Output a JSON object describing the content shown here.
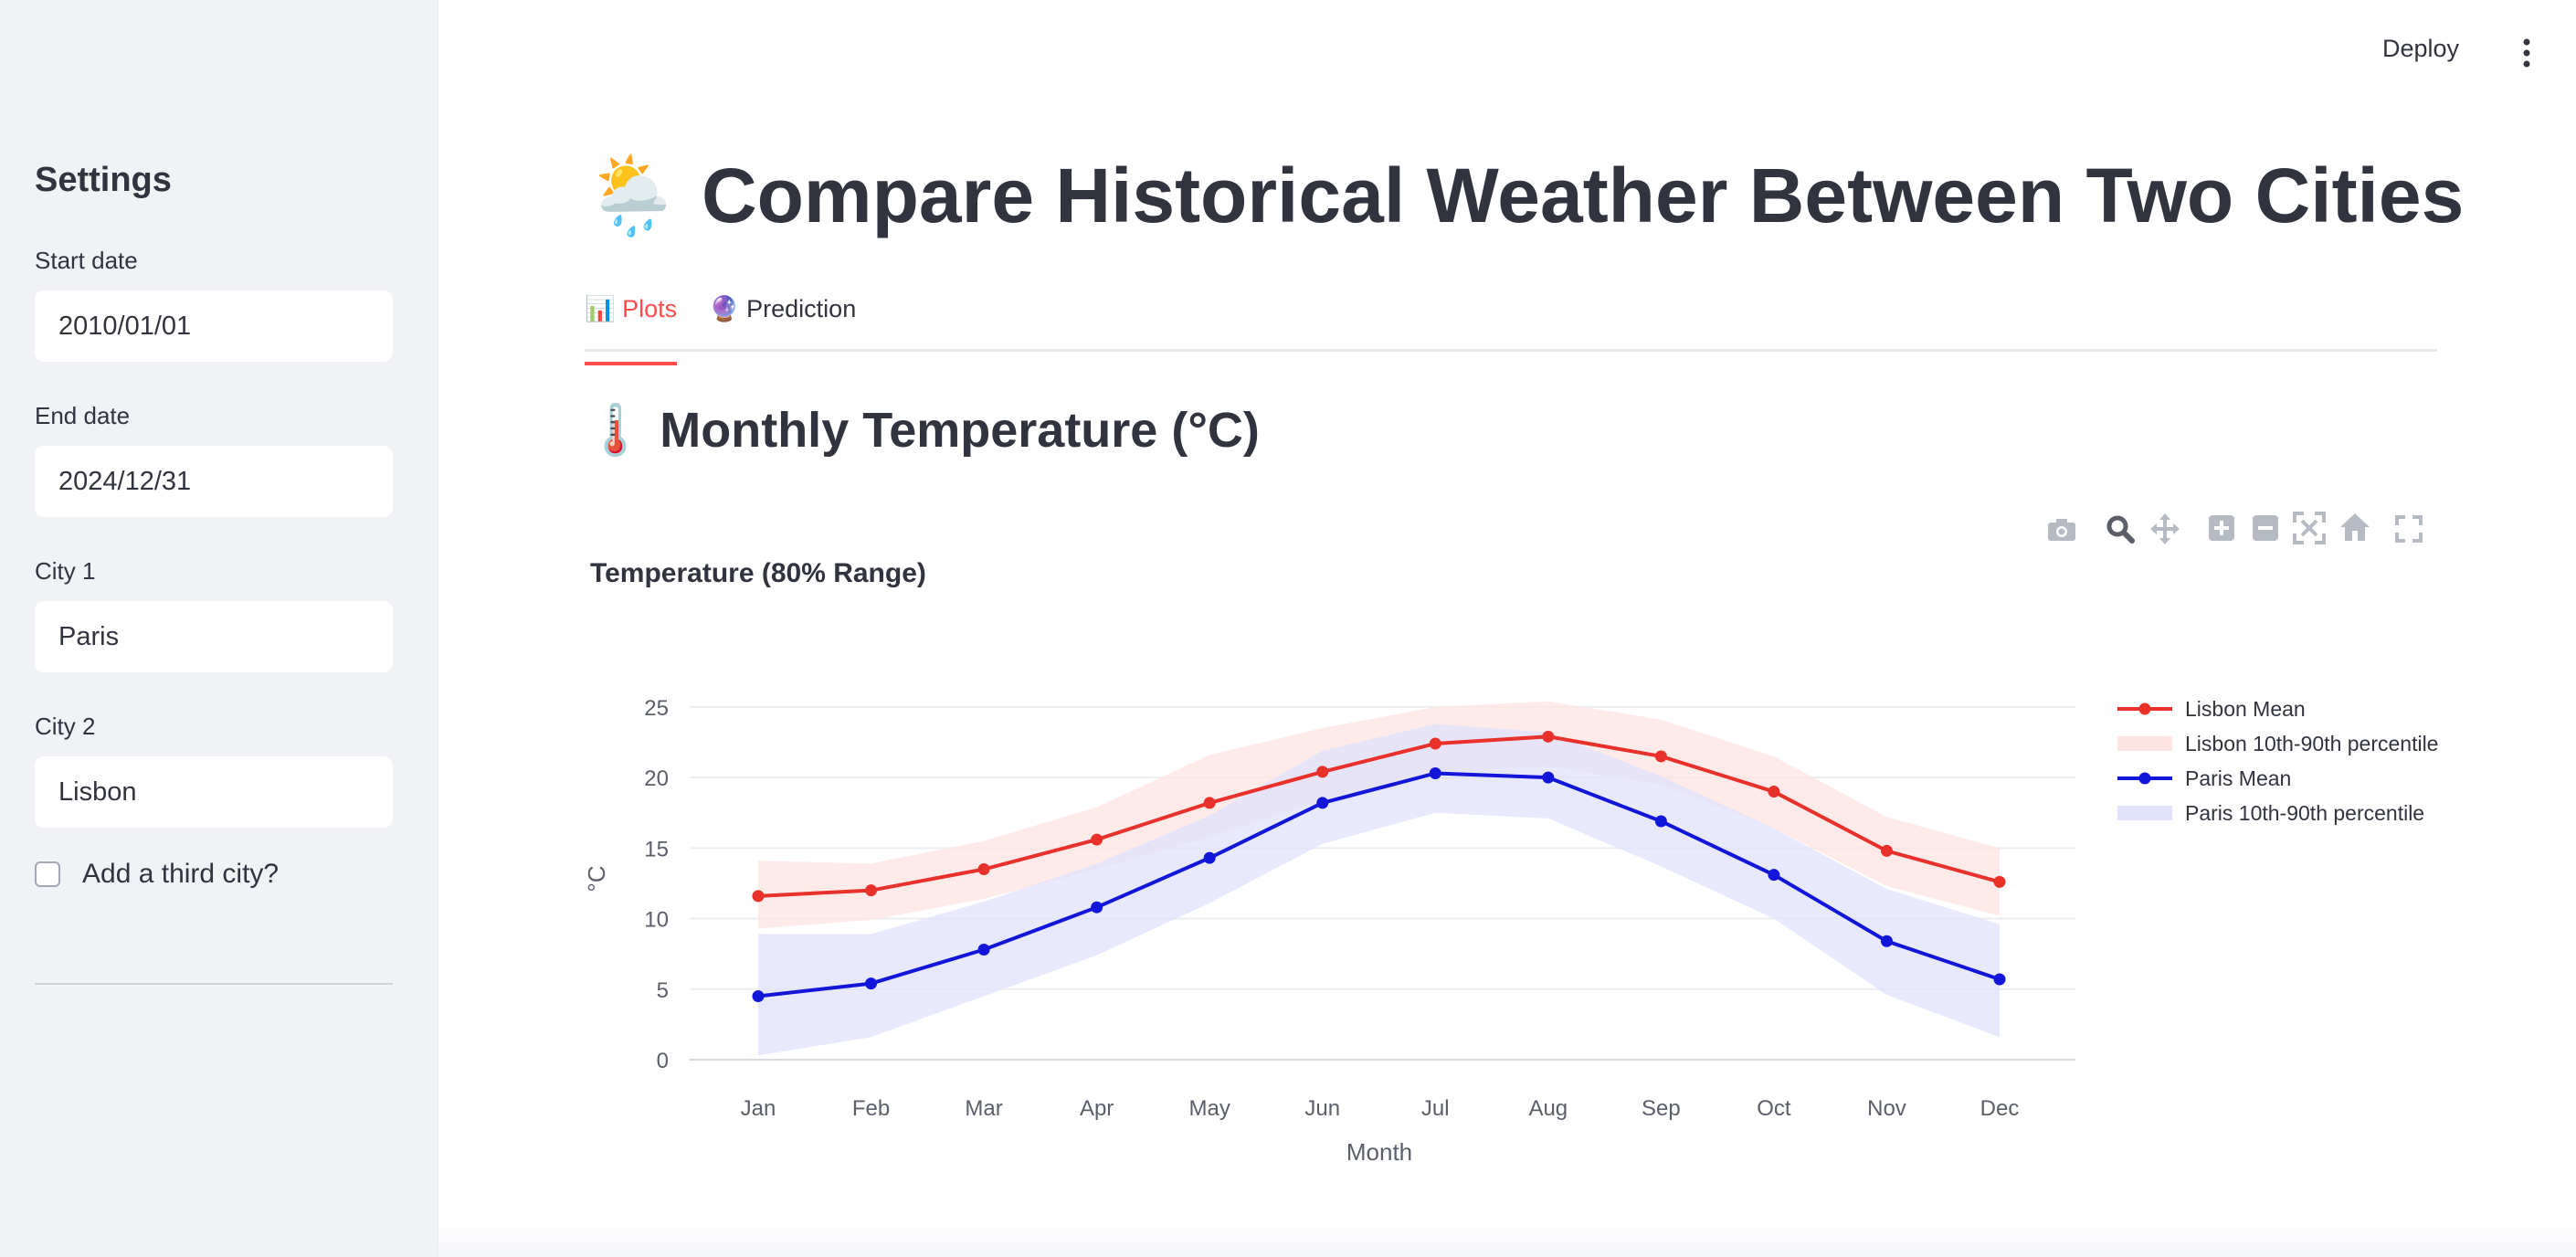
{
  "sidebar": {
    "heading": "Settings",
    "start_date": {
      "label": "Start date",
      "value": "2010/01/01"
    },
    "end_date": {
      "label": "End date",
      "value": "2024/12/31"
    },
    "city1": {
      "label": "City 1",
      "value": "Paris"
    },
    "city2": {
      "label": "City 2",
      "value": "Lisbon"
    },
    "third_city": {
      "label": "Add a third city?",
      "checked": false
    }
  },
  "header": {
    "deploy_label": "Deploy",
    "menu_icon": "vertical-dots-icon"
  },
  "main": {
    "title_emoji": "🌦️",
    "title": "Compare Historical Weather Between Two Cities",
    "tabs": [
      {
        "emoji": "📊",
        "label": "Plots",
        "active": true
      },
      {
        "emoji": "🔮",
        "label": "Prediction",
        "active": false
      }
    ],
    "section_emoji": "🌡️",
    "section_title": "Monthly Temperature (°C)"
  },
  "modebar_icons": [
    "camera-icon",
    "zoom-icon",
    "pan-icon",
    "zoom-in-icon",
    "zoom-out-icon",
    "autoscale-icon",
    "reset-axes-icon",
    "fullscreen-icon"
  ],
  "chart_data": {
    "type": "line",
    "title": "Temperature (80% Range)",
    "xlabel": "Month",
    "ylabel": "°C",
    "ylim": [
      0,
      27
    ],
    "yticks": [
      0,
      5,
      10,
      15,
      20,
      25
    ],
    "grid": true,
    "legend_position": "right",
    "categories": [
      "Jan",
      "Feb",
      "Mar",
      "Apr",
      "May",
      "Jun",
      "Jul",
      "Aug",
      "Sep",
      "Oct",
      "Nov",
      "Dec"
    ],
    "series": [
      {
        "name": "Lisbon Mean",
        "color": "#e8312a",
        "values": [
          11.6,
          12.0,
          13.5,
          15.6,
          18.2,
          20.4,
          22.4,
          22.9,
          21.5,
          19.0,
          14.8,
          12.6
        ]
      },
      {
        "name": "Lisbon 10th-90th percentile",
        "color": "#fde4e2",
        "type": "band",
        "low": [
          9.3,
          9.9,
          11.4,
          13.5,
          15.8,
          18.4,
          20.4,
          20.8,
          19.5,
          16.4,
          12.3,
          10.2
        ],
        "high": [
          14.1,
          13.9,
          15.5,
          17.9,
          21.6,
          23.5,
          25.0,
          25.4,
          24.1,
          21.5,
          17.2,
          15.0
        ]
      },
      {
        "name": "Paris Mean",
        "color": "#1216d8",
        "values": [
          4.5,
          5.4,
          7.8,
          10.8,
          14.3,
          18.2,
          20.3,
          20.0,
          16.9,
          13.1,
          8.4,
          5.7
        ]
      },
      {
        "name": "Paris 10th-90th percentile",
        "color": "#e0e2fb",
        "type": "band",
        "low": [
          0.3,
          1.6,
          4.5,
          7.4,
          11.1,
          15.3,
          17.5,
          17.1,
          13.7,
          10.0,
          4.6,
          1.6
        ],
        "high": [
          8.9,
          8.9,
          11.2,
          13.9,
          17.3,
          21.9,
          23.8,
          23.2,
          20.1,
          16.4,
          12.1,
          9.6
        ]
      }
    ]
  }
}
